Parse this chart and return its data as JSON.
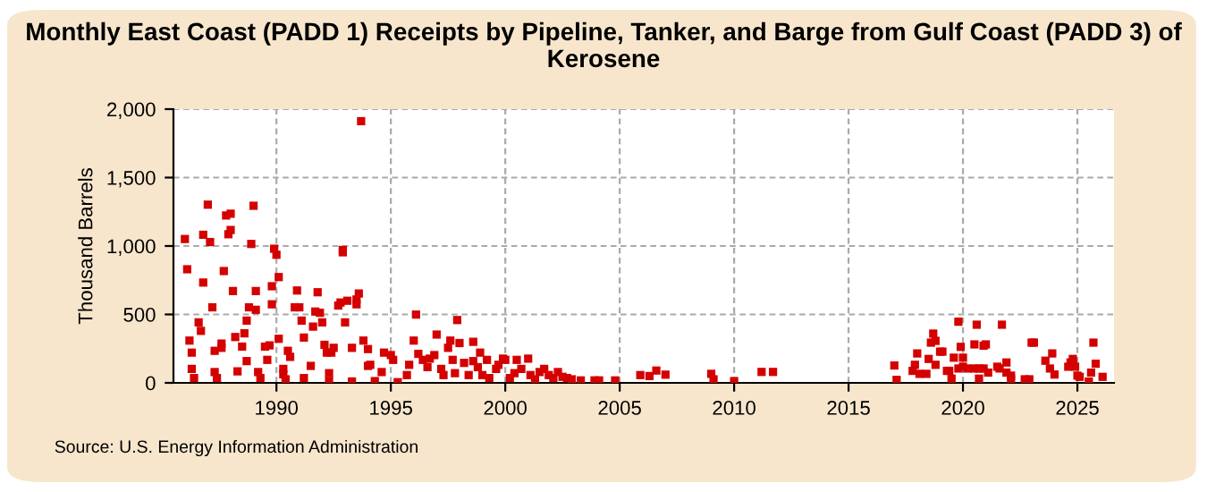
{
  "chart_data": {
    "type": "scatter",
    "title": "Monthly East Coast (PADD 1) Receipts by Pipeline, Tanker, and Barge from Gulf Coast (PADD 3) of Kerosene",
    "ylabel": "Thousand Barrels",
    "annotations": [
      "Source: U.S. Energy Information Administration"
    ],
    "xlim": [
      1985.5,
      2026.6
    ],
    "xticks": [
      1990,
      1995,
      2000,
      2005,
      2010,
      2015,
      2020,
      2025
    ],
    "ylim": [
      0,
      2000
    ],
    "yticks": [
      {
        "value": 0,
        "label": "0"
      },
      {
        "value": 500,
        "label": "500"
      },
      {
        "value": 1000,
        "label": "1,000"
      },
      {
        "value": 1500,
        "label": "1,500"
      },
      {
        "value": 2000,
        "label": "2,000"
      }
    ],
    "grid": true,
    "marker": "square",
    "legend": false,
    "series": [
      {
        "color": "#d40000",
        "x": [
          1986.0,
          1986.1,
          1986.2,
          1986.3,
          1986.3,
          1986.4,
          1986.6,
          1986.7,
          1986.8,
          1986.8,
          1987.0,
          1987.1,
          1987.2,
          1987.3,
          1987.3,
          1987.4,
          1987.6,
          1987.6,
          1987.7,
          1987.8,
          1987.9,
          1988.0,
          1988.0,
          1988.1,
          1988.2,
          1988.3,
          1988.5,
          1988.6,
          1988.7,
          1988.7,
          1988.8,
          1988.9,
          1989.0,
          1989.1,
          1989.1,
          1989.2,
          1989.3,
          1989.5,
          1989.6,
          1989.7,
          1989.8,
          1989.8,
          1989.9,
          1990.0,
          1990.1,
          1990.1,
          1990.3,
          1990.3,
          1990.4,
          1990.5,
          1990.6,
          1990.8,
          1990.9,
          1991.0,
          1991.1,
          1991.2,
          1991.2,
          1991.5,
          1991.6,
          1991.7,
          1991.8,
          1991.9,
          1992.0,
          1992.1,
          1992.2,
          1992.3,
          1992.3,
          1992.4,
          1992.5,
          1992.7,
          1992.8,
          1992.9,
          1992.9,
          1993.0,
          1993.1,
          1993.3,
          1993.3,
          1993.5,
          1993.5,
          1993.6,
          1993.7,
          1993.8,
          1994.0,
          1994.1,
          1994.0,
          1994.3,
          1994.7,
          1994.6,
          1995.0,
          1995.1,
          1995.3,
          1995.7,
          1995.8,
          1996.0,
          1996.1,
          1996.2,
          1996.4,
          1996.6,
          1996.7,
          1996.9,
          1997.0,
          1997.2,
          1997.3,
          1997.5,
          1997.6,
          1997.7,
          1997.8,
          1997.9,
          1998.0,
          1998.2,
          1998.4,
          1998.6,
          1998.6,
          1998.8,
          1998.9,
          1999.0,
          1999.2,
          1999.3,
          1999.6,
          1999.7,
          1999.9,
          2000.0,
          2000.2,
          2000.4,
          2000.5,
          2000.7,
          2001.0,
          2001.1,
          2001.3,
          2001.5,
          2001.7,
          2001.9,
          2002.1,
          2002.3,
          2002.5,
          2002.7,
          2002.9,
          2003.3,
          2003.9,
          2004.1,
          2004.8,
          2005.9,
          2006.3,
          2006.6,
          2007.0,
          2009.0,
          2009.1,
          2010.0,
          2011.2,
          2011.7,
          2017.0,
          2017.1,
          2017.8,
          2017.9,
          2018.0,
          2018.1,
          2018.4,
          2018.5,
          2018.6,
          2018.7,
          2018.8,
          2018.8,
          2019.0,
          2019.1,
          2019.3,
          2019.4,
          2019.5,
          2019.6,
          2019.8,
          2019.8,
          2019.9,
          2020.0,
          2020.0,
          2020.2,
          2020.5,
          2020.5,
          2020.6,
          2020.7,
          2020.7,
          2020.9,
          2020.9,
          2021.0,
          2021.1,
          2021.5,
          2021.6,
          2021.7,
          2021.9,
          2021.9,
          2022.1,
          2022.1,
          2022.7,
          2022.9,
          2023.0,
          2023.1,
          2023.6,
          2023.8,
          2023.9,
          2024.0,
          2024.6,
          2024.7,
          2024.8,
          2024.8,
          2024.9,
          2025.0,
          2025.1,
          2025.5,
          2025.6,
          2025.7,
          2025.8,
          2026.1
        ],
        "values": [
          1051,
          830,
          309,
          221,
          102,
          35,
          442,
          380,
          733,
          1082,
          1302,
          1029,
          552,
          234,
          79,
          35,
          287,
          256,
          817,
          1223,
          1086,
          1117,
          1236,
          671,
          335,
          84,
          265,
          362,
          159,
          455,
          552,
          1015,
          1294,
          671,
          534,
          79,
          35,
          265,
          168,
          274,
          706,
          574,
          980,
          936,
          773,
          322,
          102,
          62,
          26,
          234,
          190,
          552,
          675,
          552,
          455,
          331,
          35,
          124,
          411,
          521,
          662,
          512,
          442,
          278,
          221,
          71,
          13,
          221,
          256,
          565,
          587,
          954,
          971,
          442,
          600,
          10,
          256,
          609,
          574,
          653,
          1912,
          309,
          247,
          132,
          124,
          13,
          221,
          79,
          203,
          168,
          5,
          57,
          132,
          309,
          499,
          212,
          168,
          115,
          177,
          203,
          353,
          102,
          57,
          256,
          309,
          168,
          71,
          459,
          291,
          146,
          57,
          159,
          300,
          115,
          221,
          57,
          168,
          35,
          102,
          132,
          177,
          168,
          35,
          71,
          168,
          102,
          177,
          57,
          26,
          79,
          102,
          57,
          35,
          79,
          44,
          35,
          26,
          18,
          18,
          18,
          18,
          57,
          50,
          90,
          60,
          66,
          26,
          13,
          80,
          80,
          127,
          22,
          88,
          132,
          215,
          66,
          66,
          175,
          294,
          360,
          307,
          132,
          228,
          228,
          88,
          88,
          31,
          184,
          105,
          447,
          263,
          184,
          118,
          105,
          105,
          281,
          425,
          105,
          31,
          105,
          272,
          281,
          75,
          118,
          105,
          425,
          149,
          75,
          53,
          26,
          26,
          26,
          294,
          294,
          162,
          105,
          215,
          61,
          118,
          149,
          175,
          149,
          118,
          53,
          44,
          9,
          75,
          294,
          140,
          44
        ]
      }
    ]
  }
}
